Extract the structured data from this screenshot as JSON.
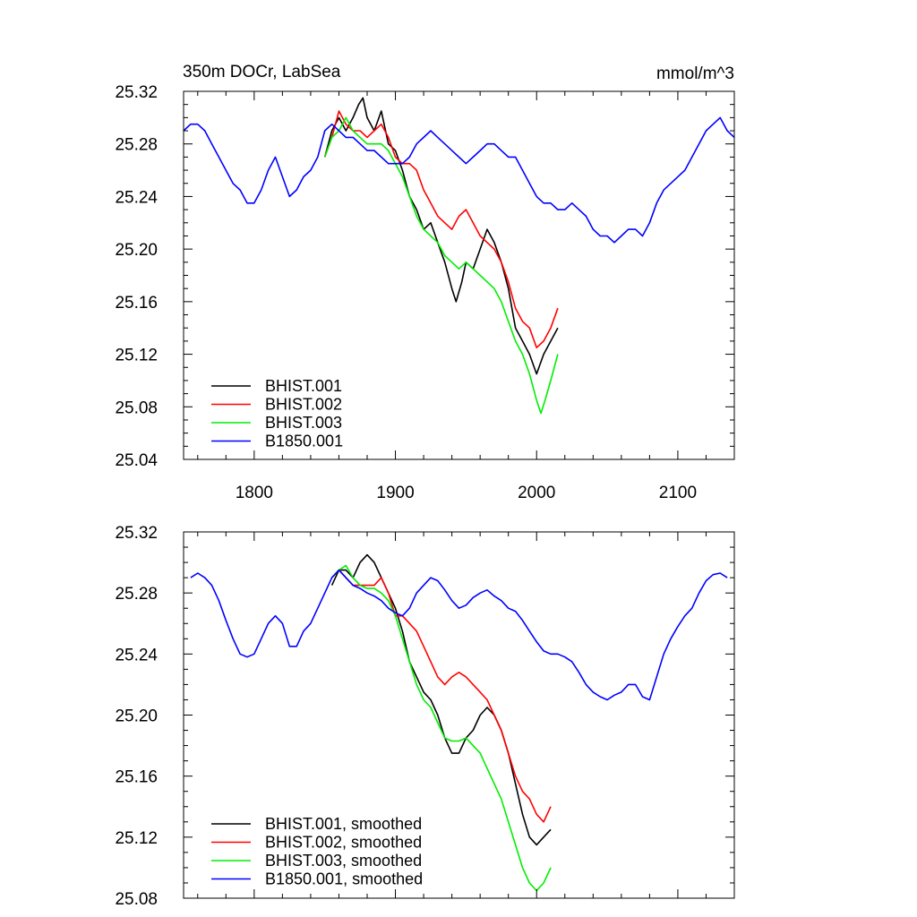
{
  "chart_data": [
    {
      "type": "line",
      "title": "350m DOCr, LabSea",
      "units": "mmol/m^3",
      "xlim": [
        1750,
        2140
      ],
      "ylim": [
        25.04,
        25.32
      ],
      "xticks": [
        1800,
        1900,
        2000,
        2100
      ],
      "yticks": [
        25.04,
        25.08,
        25.12,
        25.16,
        25.2,
        25.24,
        25.28,
        25.32
      ],
      "ytick_labels": [
        "25.04",
        "25.08",
        "25.12",
        "25.16",
        "25.20",
        "25.24",
        "25.28",
        "25.32"
      ],
      "xtick_labels": [
        "1800",
        "1900",
        "2000",
        "2100"
      ],
      "legend_position": "bottom-left",
      "series": [
        {
          "name": "BHIST.001",
          "color": "#000000",
          "x": [
            1850,
            1855,
            1860,
            1865,
            1870,
            1874,
            1877,
            1880,
            1885,
            1890,
            1895,
            1900,
            1905,
            1910,
            1915,
            1920,
            1925,
            1930,
            1935,
            1940,
            1943,
            1947,
            1950,
            1955,
            1960,
            1965,
            1970,
            1975,
            1980,
            1985,
            1990,
            1995,
            2000,
            2005,
            2010,
            2015
          ],
          "y": [
            25.27,
            25.29,
            25.3,
            25.29,
            25.3,
            25.31,
            25.315,
            25.3,
            25.29,
            25.305,
            25.28,
            25.275,
            25.26,
            25.24,
            25.23,
            25.215,
            25.22,
            25.205,
            25.19,
            25.17,
            25.16,
            25.175,
            25.19,
            25.185,
            25.2,
            25.215,
            25.205,
            25.19,
            25.17,
            25.14,
            25.13,
            25.12,
            25.105,
            25.12,
            25.13,
            25.14
          ]
        },
        {
          "name": "BHIST.002",
          "color": "#ff0000",
          "x": [
            1850,
            1855,
            1860,
            1865,
            1870,
            1875,
            1880,
            1885,
            1890,
            1895,
            1900,
            1905,
            1910,
            1915,
            1920,
            1925,
            1930,
            1935,
            1940,
            1945,
            1950,
            1955,
            1960,
            1965,
            1970,
            1975,
            1980,
            1985,
            1990,
            1995,
            2000,
            2005,
            2010,
            2015
          ],
          "y": [
            25.27,
            25.285,
            25.305,
            25.295,
            25.29,
            25.29,
            25.285,
            25.29,
            25.295,
            25.285,
            25.27,
            25.265,
            25.265,
            25.26,
            25.245,
            25.235,
            25.225,
            25.22,
            25.215,
            25.225,
            25.23,
            25.22,
            25.21,
            25.205,
            25.2,
            25.19,
            25.175,
            25.155,
            25.145,
            25.14,
            25.125,
            25.13,
            25.14,
            25.155
          ]
        },
        {
          "name": "BHIST.003",
          "color": "#00ee00",
          "x": [
            1850,
            1855,
            1860,
            1865,
            1870,
            1875,
            1880,
            1885,
            1890,
            1895,
            1900,
            1905,
            1910,
            1915,
            1920,
            1925,
            1930,
            1935,
            1940,
            1945,
            1950,
            1955,
            1960,
            1965,
            1970,
            1975,
            1980,
            1985,
            1990,
            1995,
            2000,
            2003,
            2006,
            2010,
            2015
          ],
          "y": [
            25.27,
            25.285,
            25.29,
            25.3,
            25.29,
            25.285,
            25.28,
            25.28,
            25.28,
            25.275,
            25.265,
            25.255,
            25.24,
            25.225,
            25.215,
            25.21,
            25.205,
            25.195,
            25.19,
            25.185,
            25.19,
            25.185,
            25.18,
            25.175,
            25.17,
            25.16,
            25.145,
            25.13,
            25.12,
            25.105,
            25.085,
            25.075,
            25.085,
            25.1,
            25.12
          ]
        },
        {
          "name": "B1850.001",
          "color": "#0000ff",
          "x": [
            1750,
            1755,
            1760,
            1765,
            1770,
            1775,
            1780,
            1785,
            1790,
            1795,
            1800,
            1805,
            1810,
            1815,
            1820,
            1825,
            1830,
            1835,
            1840,
            1845,
            1850,
            1855,
            1860,
            1865,
            1870,
            1875,
            1880,
            1885,
            1890,
            1895,
            1900,
            1905,
            1910,
            1915,
            1920,
            1925,
            1930,
            1935,
            1940,
            1945,
            1950,
            1955,
            1960,
            1965,
            1970,
            1975,
            1980,
            1985,
            1990,
            1995,
            2000,
            2005,
            2010,
            2015,
            2020,
            2025,
            2030,
            2035,
            2040,
            2045,
            2050,
            2055,
            2060,
            2065,
            2070,
            2075,
            2080,
            2085,
            2090,
            2095,
            2100,
            2105,
            2110,
            2115,
            2120,
            2125,
            2130,
            2135,
            2140
          ],
          "y": [
            25.29,
            25.295,
            25.295,
            25.29,
            25.28,
            25.27,
            25.26,
            25.25,
            25.245,
            25.235,
            25.235,
            25.245,
            25.26,
            25.27,
            25.255,
            25.24,
            25.245,
            25.255,
            25.26,
            25.27,
            25.29,
            25.295,
            25.29,
            25.285,
            25.285,
            25.28,
            25.275,
            25.275,
            25.27,
            25.265,
            25.265,
            25.265,
            25.27,
            25.28,
            25.285,
            25.29,
            25.285,
            25.28,
            25.275,
            25.27,
            25.265,
            25.27,
            25.275,
            25.28,
            25.28,
            25.275,
            25.27,
            25.27,
            25.26,
            25.25,
            25.24,
            25.235,
            25.235,
            25.23,
            25.23,
            25.235,
            25.23,
            25.225,
            25.215,
            25.21,
            25.21,
            25.205,
            25.21,
            25.215,
            25.215,
            25.21,
            25.22,
            25.235,
            25.245,
            25.25,
            25.255,
            25.26,
            25.27,
            25.28,
            25.29,
            25.295,
            25.3,
            25.29,
            25.285
          ]
        }
      ]
    },
    {
      "type": "line",
      "xlim": [
        1750,
        2140
      ],
      "ylim": [
        25.08,
        25.32
      ],
      "yticks": [
        25.08,
        25.12,
        25.16,
        25.2,
        25.24,
        25.28,
        25.32
      ],
      "ytick_labels": [
        "25.08",
        "25.12",
        "25.16",
        "25.20",
        "25.24",
        "25.28",
        "25.32"
      ],
      "xticks": [
        1800,
        1900,
        2000,
        2100
      ],
      "legend_position": "bottom-left",
      "series": [
        {
          "name": "BHIST.001, smoothed",
          "color": "#000000",
          "x": [
            1855,
            1860,
            1865,
            1870,
            1875,
            1880,
            1885,
            1890,
            1895,
            1900,
            1905,
            1910,
            1915,
            1920,
            1925,
            1930,
            1935,
            1940,
            1945,
            1950,
            1955,
            1960,
            1965,
            1970,
            1975,
            1980,
            1985,
            1990,
            1995,
            2000,
            2005,
            2010
          ],
          "y": [
            25.285,
            25.295,
            25.295,
            25.29,
            25.3,
            25.305,
            25.3,
            25.29,
            25.28,
            25.27,
            25.255,
            25.235,
            25.225,
            25.215,
            25.21,
            25.2,
            25.185,
            25.175,
            25.175,
            25.185,
            25.19,
            25.2,
            25.205,
            25.2,
            25.19,
            25.175,
            25.155,
            25.135,
            25.12,
            25.115,
            25.12,
            25.125
          ]
        },
        {
          "name": "BHIST.002, smoothed",
          "color": "#ff0000",
          "x": [
            1855,
            1860,
            1865,
            1870,
            1875,
            1880,
            1885,
            1890,
            1895,
            1900,
            1905,
            1910,
            1915,
            1920,
            1925,
            1930,
            1935,
            1940,
            1945,
            1950,
            1955,
            1960,
            1965,
            1970,
            1975,
            1980,
            1985,
            1990,
            1995,
            2000,
            2005,
            2010
          ],
          "y": [
            25.29,
            25.295,
            25.29,
            25.285,
            25.285,
            25.285,
            25.285,
            25.29,
            25.28,
            25.265,
            25.265,
            25.26,
            25.255,
            25.245,
            25.235,
            25.225,
            25.22,
            25.225,
            25.228,
            25.225,
            25.22,
            25.215,
            25.21,
            25.2,
            25.19,
            25.175,
            25.16,
            25.15,
            25.145,
            25.135,
            25.13,
            25.14
          ]
        },
        {
          "name": "BHIST.003, smoothed",
          "color": "#00ee00",
          "x": [
            1855,
            1860,
            1865,
            1870,
            1875,
            1880,
            1885,
            1890,
            1895,
            1900,
            1905,
            1910,
            1915,
            1920,
            1925,
            1930,
            1935,
            1940,
            1945,
            1950,
            1955,
            1960,
            1965,
            1970,
            1975,
            1980,
            1985,
            1990,
            1995,
            2000,
            2005,
            2010
          ],
          "y": [
            25.29,
            25.295,
            25.298,
            25.29,
            25.285,
            25.283,
            25.283,
            25.28,
            25.275,
            25.265,
            25.25,
            25.235,
            25.22,
            25.21,
            25.205,
            25.195,
            25.185,
            25.183,
            25.183,
            25.185,
            25.18,
            25.175,
            25.165,
            25.155,
            25.145,
            25.13,
            25.115,
            25.1,
            25.09,
            25.085,
            25.09,
            25.1
          ]
        },
        {
          "name": "B1850.001, smoothed",
          "color": "#0000ff",
          "x": [
            1755,
            1760,
            1765,
            1770,
            1775,
            1780,
            1785,
            1790,
            1795,
            1800,
            1805,
            1810,
            1815,
            1820,
            1825,
            1830,
            1835,
            1840,
            1845,
            1850,
            1855,
            1860,
            1865,
            1870,
            1875,
            1880,
            1885,
            1890,
            1895,
            1900,
            1905,
            1910,
            1915,
            1920,
            1925,
            1930,
            1935,
            1940,
            1945,
            1950,
            1955,
            1960,
            1965,
            1970,
            1975,
            1980,
            1985,
            1990,
            1995,
            2000,
            2005,
            2010,
            2015,
            2020,
            2025,
            2030,
            2035,
            2040,
            2045,
            2050,
            2055,
            2060,
            2065,
            2070,
            2075,
            2080,
            2085,
            2090,
            2095,
            2100,
            2105,
            2110,
            2115,
            2120,
            2125,
            2130,
            2135
          ],
          "y": [
            25.29,
            25.293,
            25.29,
            25.285,
            25.275,
            25.262,
            25.25,
            25.24,
            25.238,
            25.24,
            25.25,
            25.26,
            25.265,
            25.26,
            25.245,
            25.245,
            25.255,
            25.26,
            25.27,
            25.28,
            25.29,
            25.295,
            25.29,
            25.285,
            25.283,
            25.28,
            25.278,
            25.275,
            25.27,
            25.267,
            25.265,
            25.27,
            25.28,
            25.285,
            25.29,
            25.288,
            25.282,
            25.275,
            25.27,
            25.272,
            25.277,
            25.28,
            25.282,
            25.278,
            25.275,
            25.27,
            25.268,
            25.262,
            25.255,
            25.248,
            25.242,
            25.24,
            25.24,
            25.238,
            25.235,
            25.228,
            25.22,
            25.215,
            25.212,
            25.21,
            25.213,
            25.215,
            25.22,
            25.22,
            25.212,
            25.21,
            25.225,
            25.24,
            25.25,
            25.258,
            25.265,
            25.27,
            25.28,
            25.288,
            25.292,
            25.293,
            25.29
          ]
        }
      ]
    }
  ]
}
